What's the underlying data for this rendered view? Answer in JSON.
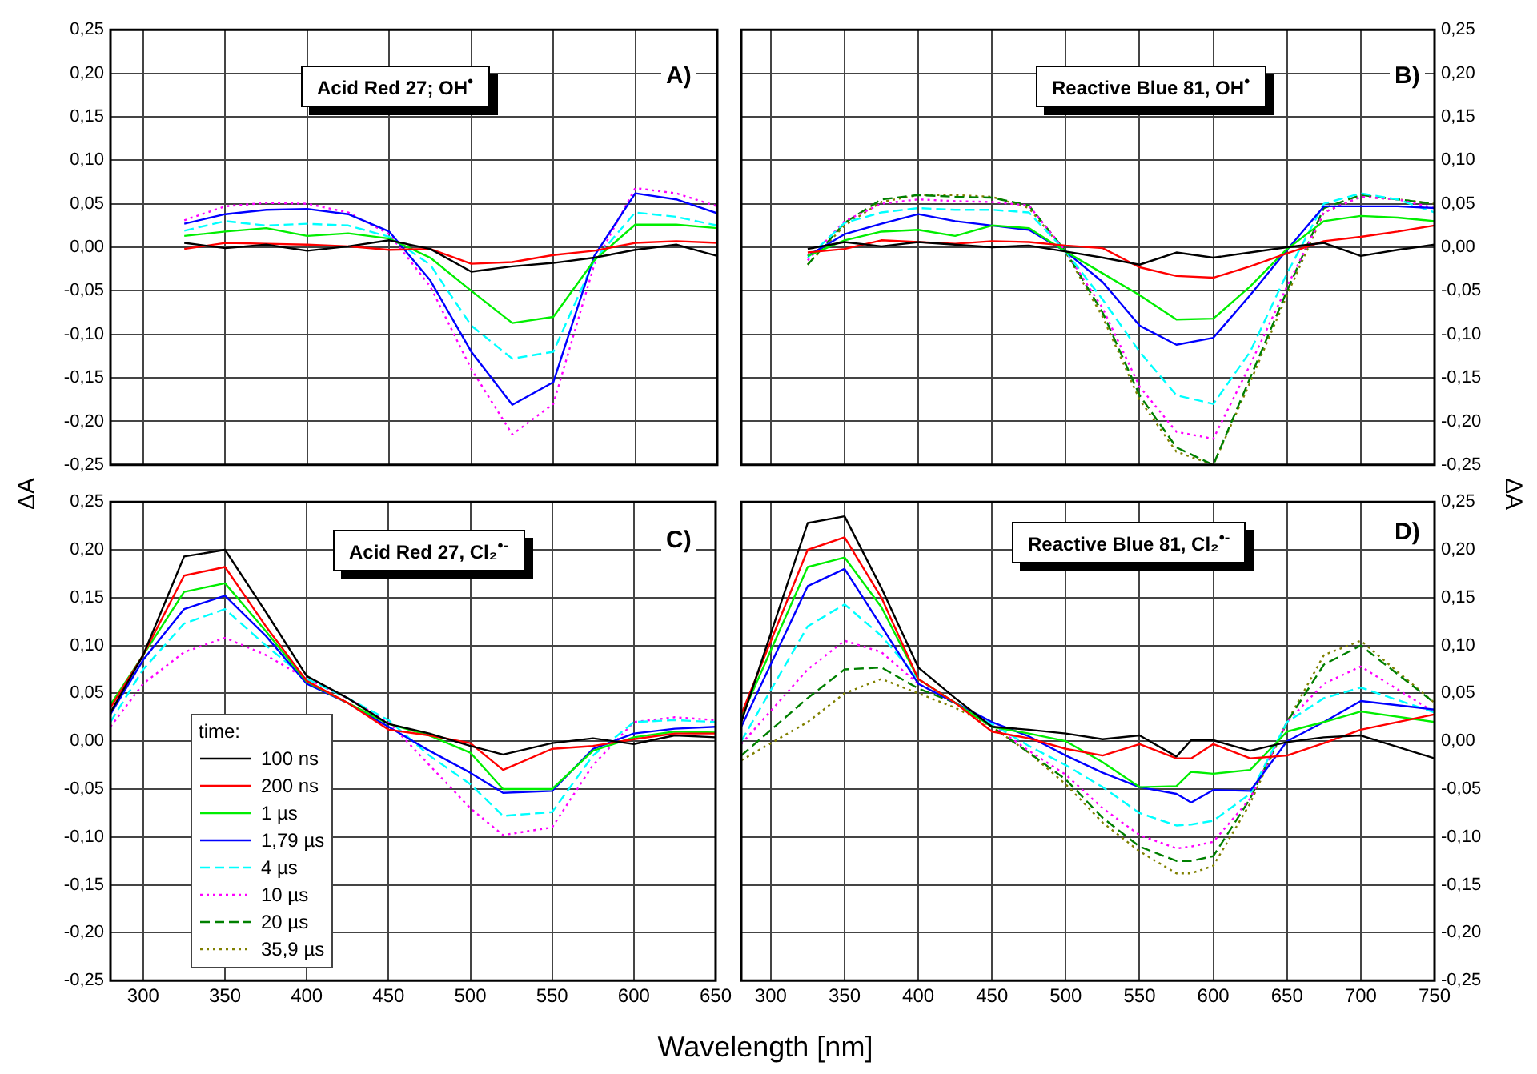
{
  "chart_data": [
    {
      "type": "line",
      "annotations": [
        "Acid Red 27; OH$^{•}$",
        "A)"
      ],
      "x": [
        325,
        350,
        375,
        400,
        425,
        450,
        475,
        500,
        525,
        550,
        575,
        600,
        625,
        650
      ],
      "xlim": [
        280,
        650
      ],
      "xticks": [
        300,
        350,
        400,
        450,
        500,
        550,
        600,
        650
      ],
      "ylim": [
        -0.25,
        0.25
      ],
      "yticks": [
        {
          "value": -0.25,
          "label": "-0,25"
        },
        {
          "value": -0.2,
          "label": "-0,20"
        },
        {
          "value": -0.15,
          "label": "-0,15"
        },
        {
          "value": -0.1,
          "label": "-0,10"
        },
        {
          "value": -0.05,
          "label": "-0,05"
        },
        {
          "value": 0,
          "label": "0,00"
        },
        {
          "value": 0.05,
          "label": "0,05"
        },
        {
          "value": 0.1,
          "label": "0,10"
        },
        {
          "value": 0.15,
          "label": "0,15"
        },
        {
          "value": 0.2,
          "label": "0,20"
        },
        {
          "value": 0.25,
          "label": "0,25"
        }
      ],
      "tick_labels": "y",
      "grid": true,
      "marker": "none",
      "legend": false,
      "series": [
        {
          "color": "#000000",
          "line_style": "solid",
          "values": [
            0.005,
            -0.001,
            0.003,
            -0.004,
            0.001,
            0.008,
            -0.002,
            -0.028,
            -0.022,
            -0.018,
            -0.012,
            -0.003,
            0.003,
            -0.01
          ]
        },
        {
          "color": "#ff0000",
          "line_style": "solid",
          "values": [
            -0.002,
            0.005,
            0.004,
            0.003,
            0.001,
            -0.003,
            -0.002,
            -0.019,
            -0.017,
            -0.009,
            -0.004,
            0.005,
            0.007,
            0.005
          ]
        },
        {
          "color": "#00ee00",
          "line_style": "solid",
          "values": [
            0.013,
            0.018,
            0.022,
            0.013,
            0.016,
            0.01,
            -0.012,
            -0.05,
            -0.087,
            -0.08,
            -0.015,
            0.026,
            0.026,
            0.022
          ]
        },
        {
          "color": "#0000ff",
          "line_style": "solid",
          "values": [
            0.027,
            0.038,
            0.043,
            0.044,
            0.038,
            0.018,
            -0.038,
            -0.12,
            -0.181,
            -0.155,
            -0.01,
            0.062,
            0.055,
            0.039
          ]
        },
        {
          "color": "#00ffff",
          "line_style": "dashed",
          "values": [
            0.019,
            0.03,
            0.025,
            0.027,
            0.025,
            0.012,
            -0.02,
            -0.09,
            -0.128,
            -0.12,
            -0.015,
            0.04,
            0.035,
            0.025
          ]
        },
        {
          "color": "#ff00ff",
          "line_style": "dotted",
          "values": [
            0.031,
            0.047,
            0.051,
            0.05,
            0.04,
            0.015,
            -0.045,
            -0.14,
            -0.215,
            -0.18,
            -0.02,
            0.068,
            0.062,
            0.047
          ]
        }
      ]
    },
    {
      "type": "line",
      "annotations": [
        "Reactive Blue 81, OH$^{•}$",
        "B)"
      ],
      "x": [
        325,
        350,
        375,
        400,
        425,
        450,
        475,
        500,
        525,
        550,
        575,
        600,
        625,
        650,
        675,
        700,
        725,
        750
      ],
      "xlim": [
        280,
        750
      ],
      "xticks": [
        300,
        350,
        400,
        450,
        500,
        550,
        600,
        650,
        700,
        750
      ],
      "ylim": [
        -0.25,
        0.25
      ],
      "yticks": [
        {
          "value": -0.25,
          "label": "-0,25"
        },
        {
          "value": -0.2,
          "label": "-0,20"
        },
        {
          "value": -0.15,
          "label": "-0,15"
        },
        {
          "value": -0.1,
          "label": "-0,10"
        },
        {
          "value": -0.05,
          "label": "-0,05"
        },
        {
          "value": 0,
          "label": "0,00"
        },
        {
          "value": 0.05,
          "label": "0,05"
        },
        {
          "value": 0.1,
          "label": "0,10"
        },
        {
          "value": 0.15,
          "label": "0,15"
        },
        {
          "value": 0.2,
          "label": "0,20"
        },
        {
          "value": 0.25,
          "label": "0,25"
        }
      ],
      "tick_labels": "y",
      "grid": true,
      "marker": "none",
      "legend": false,
      "series": [
        {
          "color": "#000000",
          "line_style": "solid",
          "values": [
            -0.002,
            0.006,
            0.001,
            0.006,
            0.003,
            0.0,
            0.002,
            -0.005,
            -0.012,
            -0.02,
            -0.006,
            -0.012,
            -0.006,
            0.0,
            0.005,
            -0.01,
            -0.003,
            0.003
          ]
        },
        {
          "color": "#ff0000",
          "line_style": "solid",
          "values": [
            -0.006,
            -0.002,
            0.008,
            0.006,
            0.004,
            0.007,
            0.006,
            0.002,
            -0.001,
            -0.023,
            -0.033,
            -0.035,
            -0.022,
            -0.007,
            0.007,
            0.012,
            0.018,
            0.025
          ]
        },
        {
          "color": "#00ee00",
          "line_style": "solid",
          "values": [
            -0.01,
            0.008,
            0.018,
            0.02,
            0.013,
            0.025,
            0.022,
            -0.005,
            -0.03,
            -0.055,
            -0.083,
            -0.082,
            -0.045,
            -0.002,
            0.03,
            0.036,
            0.034,
            0.03
          ]
        },
        {
          "color": "#0000ff",
          "line_style": "solid",
          "values": [
            -0.01,
            0.015,
            0.027,
            0.038,
            0.03,
            0.025,
            0.02,
            -0.005,
            -0.04,
            -0.09,
            -0.112,
            -0.104,
            -0.055,
            -0.003,
            0.047,
            0.047,
            0.047,
            0.045
          ]
        },
        {
          "color": "#00ffff",
          "line_style": "dashed",
          "values": [
            -0.012,
            0.028,
            0.04,
            0.045,
            0.043,
            0.043,
            0.04,
            -0.005,
            -0.06,
            -0.12,
            -0.17,
            -0.18,
            -0.12,
            -0.03,
            0.05,
            0.062,
            0.055,
            0.04
          ]
        },
        {
          "color": "#ff00ff",
          "line_style": "dotted",
          "values": [
            -0.015,
            0.03,
            0.05,
            0.055,
            0.053,
            0.052,
            0.048,
            -0.005,
            -0.07,
            -0.16,
            -0.212,
            -0.22,
            -0.135,
            -0.045,
            0.04,
            0.058,
            0.055,
            0.045
          ]
        },
        {
          "color": "#008000",
          "line_style": "dashed",
          "values": [
            -0.02,
            0.028,
            0.055,
            0.06,
            0.058,
            0.057,
            0.048,
            -0.005,
            -0.075,
            -0.17,
            -0.23,
            -0.25,
            -0.15,
            -0.05,
            0.045,
            0.06,
            0.055,
            0.05
          ]
        },
        {
          "color": "#808000",
          "line_style": "dotted",
          "values": [
            -0.02,
            0.025,
            0.052,
            0.06,
            0.06,
            0.058,
            0.045,
            -0.006,
            -0.08,
            -0.175,
            -0.235,
            -0.25,
            -0.155,
            -0.055,
            0.04,
            0.058,
            0.055,
            0.05
          ]
        }
      ]
    },
    {
      "type": "line",
      "annotations": [
        "Acid Red 27, Cl₂$^{•-}$",
        "C)"
      ],
      "ylabel": "ΔA",
      "xlabel": "Wavelength [nm]",
      "legend_title": "time:",
      "x": [
        280,
        300,
        325,
        350,
        375,
        400,
        425,
        450,
        475,
        500,
        520,
        550,
        575,
        600,
        625,
        650
      ],
      "xlim": [
        280,
        650
      ],
      "xticks": [
        300,
        350,
        400,
        450,
        500,
        550,
        600,
        650
      ],
      "ylim": [
        -0.25,
        0.25
      ],
      "yticks": [
        {
          "value": -0.25,
          "label": "-0,25"
        },
        {
          "value": -0.2,
          "label": "-0,20"
        },
        {
          "value": -0.15,
          "label": "-0,15"
        },
        {
          "value": -0.1,
          "label": "-0,10"
        },
        {
          "value": -0.05,
          "label": "-0,05"
        },
        {
          "value": 0,
          "label": "0,00"
        },
        {
          "value": 0.05,
          "label": "0,05"
        },
        {
          "value": 0.1,
          "label": "0,10"
        },
        {
          "value": 0.15,
          "label": "0,15"
        },
        {
          "value": 0.2,
          "label": "0,20"
        },
        {
          "value": 0.25,
          "label": "0,25"
        }
      ],
      "grid": true,
      "marker": "none",
      "legend": "bottom left",
      "series": [
        {
          "name": "100 ns",
          "color": "#000000",
          "line_style": "solid",
          "values": [
            0.03,
            0.09,
            0.193,
            0.2,
            0.135,
            0.068,
            0.045,
            0.018,
            0.008,
            -0.005,
            -0.014,
            -0.002,
            0.003,
            -0.003,
            0.006,
            0.004
          ]
        },
        {
          "name": "200 ns",
          "color": "#ff0000",
          "line_style": "solid",
          "values": [
            0.035,
            0.09,
            0.173,
            0.182,
            0.12,
            0.063,
            0.04,
            0.012,
            0.006,
            -0.002,
            -0.03,
            -0.008,
            -0.005,
            0.002,
            0.008,
            0.008
          ]
        },
        {
          "name": "1 µs",
          "color": "#00ee00",
          "line_style": "solid",
          "values": [
            0.038,
            0.09,
            0.156,
            0.165,
            0.115,
            0.062,
            0.04,
            0.018,
            0.006,
            -0.012,
            -0.05,
            -0.05,
            -0.01,
            0.004,
            0.01,
            0.009
          ]
        },
        {
          "name": "1,79 µs",
          "color": "#0000ff",
          "line_style": "solid",
          "values": [
            0.028,
            0.085,
            0.138,
            0.152,
            0.11,
            0.06,
            0.04,
            0.015,
            -0.01,
            -0.033,
            -0.054,
            -0.052,
            -0.008,
            0.008,
            0.013,
            0.015
          ]
        },
        {
          "name": "4 µs",
          "color": "#00ffff",
          "line_style": "dashed",
          "values": [
            0.02,
            0.075,
            0.123,
            0.138,
            0.1,
            0.065,
            0.045,
            0.022,
            -0.015,
            -0.045,
            -0.078,
            -0.074,
            -0.015,
            0.02,
            0.022,
            0.02
          ]
        },
        {
          "name": "10 µs",
          "color": "#ff00ff",
          "line_style": "dotted",
          "values": [
            0.015,
            0.06,
            0.093,
            0.108,
            0.09,
            0.065,
            0.045,
            0.02,
            -0.025,
            -0.07,
            -0.098,
            -0.09,
            -0.025,
            0.02,
            0.025,
            0.022
          ]
        },
        {
          "name": "20 µs",
          "color": "#008000",
          "line_style": "dashed",
          "values": [
            null,
            null,
            null,
            null,
            null,
            null,
            null,
            null,
            null,
            null,
            null,
            null,
            null,
            null,
            null,
            null
          ]
        },
        {
          "name": "35,9 µs",
          "color": "#808000",
          "line_style": "dotted",
          "values": [
            null,
            null,
            null,
            null,
            null,
            null,
            null,
            null,
            null,
            null,
            null,
            null,
            null,
            null,
            null,
            null
          ]
        }
      ]
    },
    {
      "type": "line",
      "annotations": [
        "Reactive Blue 81, Cl₂$^{•-}$",
        "D)"
      ],
      "ylabel": "ΔA",
      "x": [
        280,
        325,
        350,
        375,
        400,
        425,
        450,
        475,
        500,
        525,
        550,
        575,
        585,
        600,
        625,
        650,
        675,
        700,
        750
      ],
      "xlim": [
        280,
        750
      ],
      "xticks": [
        300,
        350,
        400,
        450,
        500,
        550,
        600,
        650,
        700,
        750
      ],
      "ylim": [
        -0.25,
        0.25
      ],
      "yticks": [
        {
          "value": -0.25,
          "label": "-0,25"
        },
        {
          "value": -0.2,
          "label": "-0,20"
        },
        {
          "value": -0.15,
          "label": "-0,15"
        },
        {
          "value": -0.1,
          "label": "-0,10"
        },
        {
          "value": -0.05,
          "label": "-0,05"
        },
        {
          "value": 0,
          "label": "0,00"
        },
        {
          "value": 0.05,
          "label": "0,05"
        },
        {
          "value": 0.1,
          "label": "0,10"
        },
        {
          "value": 0.15,
          "label": "0,15"
        },
        {
          "value": 0.2,
          "label": "0,20"
        },
        {
          "value": 0.25,
          "label": "0,25"
        }
      ],
      "grid": true,
      "marker": "none",
      "legend": false,
      "series": [
        {
          "color": "#000000",
          "line_style": "solid",
          "values": [
            0.02,
            0.228,
            0.235,
            0.16,
            0.077,
            0.045,
            0.015,
            0.012,
            0.008,
            0.002,
            0.006,
            -0.016,
            0.001,
            0.001,
            -0.01,
            -0.001,
            0.004,
            0.006,
            -0.018
          ]
        },
        {
          "color": "#ff0000",
          "line_style": "solid",
          "values": [
            0.028,
            0.2,
            0.213,
            0.15,
            0.065,
            0.04,
            0.01,
            0.003,
            -0.008,
            -0.015,
            -0.003,
            -0.018,
            -0.018,
            -0.003,
            -0.018,
            -0.015,
            -0.002,
            0.012,
            0.028
          ]
        },
        {
          "color": "#00ee00",
          "line_style": "solid",
          "values": [
            0.025,
            0.182,
            0.192,
            0.14,
            0.065,
            0.04,
            0.015,
            0.008,
            0.0,
            -0.022,
            -0.048,
            -0.047,
            -0.032,
            -0.034,
            -0.03,
            0.01,
            0.02,
            0.031,
            0.02
          ]
        },
        {
          "color": "#0000ff",
          "line_style": "solid",
          "values": [
            0.015,
            0.162,
            0.18,
            0.12,
            0.06,
            0.04,
            0.02,
            0.005,
            -0.015,
            -0.033,
            -0.048,
            -0.055,
            -0.064,
            -0.051,
            -0.052,
            0.0,
            0.02,
            0.042,
            0.033
          ]
        },
        {
          "color": "#00ffff",
          "line_style": "dashed",
          "values": [
            0.0,
            0.12,
            0.143,
            0.11,
            0.065,
            0.04,
            0.018,
            -0.005,
            -0.025,
            -0.048,
            -0.075,
            -0.088,
            -0.087,
            -0.083,
            -0.055,
            0.02,
            0.045,
            0.056,
            0.03
          ]
        },
        {
          "color": "#ff00ff",
          "line_style": "dotted",
          "values": [
            -0.003,
            0.075,
            0.105,
            0.093,
            0.06,
            0.04,
            0.017,
            -0.01,
            -0.035,
            -0.07,
            -0.098,
            -0.112,
            -0.11,
            -0.105,
            -0.06,
            0.02,
            0.06,
            0.078,
            0.03
          ]
        },
        {
          "color": "#008000",
          "line_style": "dashed",
          "values": [
            -0.015,
            0.045,
            0.075,
            0.077,
            0.055,
            0.04,
            0.015,
            -0.012,
            -0.04,
            -0.08,
            -0.11,
            -0.125,
            -0.125,
            -0.12,
            -0.06,
            0.02,
            0.08,
            0.1,
            0.04
          ]
        },
        {
          "color": "#808000",
          "line_style": "dotted",
          "values": [
            -0.02,
            0.02,
            0.05,
            0.065,
            0.05,
            0.035,
            0.015,
            -0.012,
            -0.045,
            -0.085,
            -0.115,
            -0.138,
            -0.138,
            -0.13,
            -0.065,
            0.02,
            0.09,
            0.105,
            0.04
          ]
        }
      ]
    }
  ]
}
